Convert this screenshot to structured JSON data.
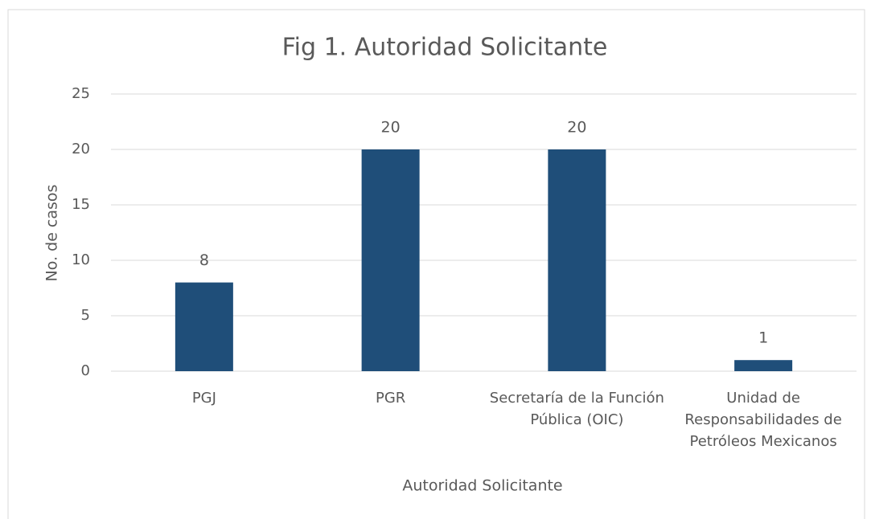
{
  "chart_data": {
    "type": "bar",
    "title": "Fig 1. Autoridad Solicitante",
    "categories": [
      "PGJ",
      "PGR",
      "Secretaría de la Función Pública (OIC)",
      "Unidad de Responsabilidades de Petróleos Mexicanos"
    ],
    "values": [
      8,
      20,
      20,
      1
    ],
    "color": "#1f4e79",
    "xlabel": "Autoridad Solicitante",
    "ylabel": "No. de casos",
    "ylim": [
      0,
      25
    ],
    "yticks": [
      0,
      5,
      10,
      15,
      20,
      25
    ],
    "grid": true
  }
}
